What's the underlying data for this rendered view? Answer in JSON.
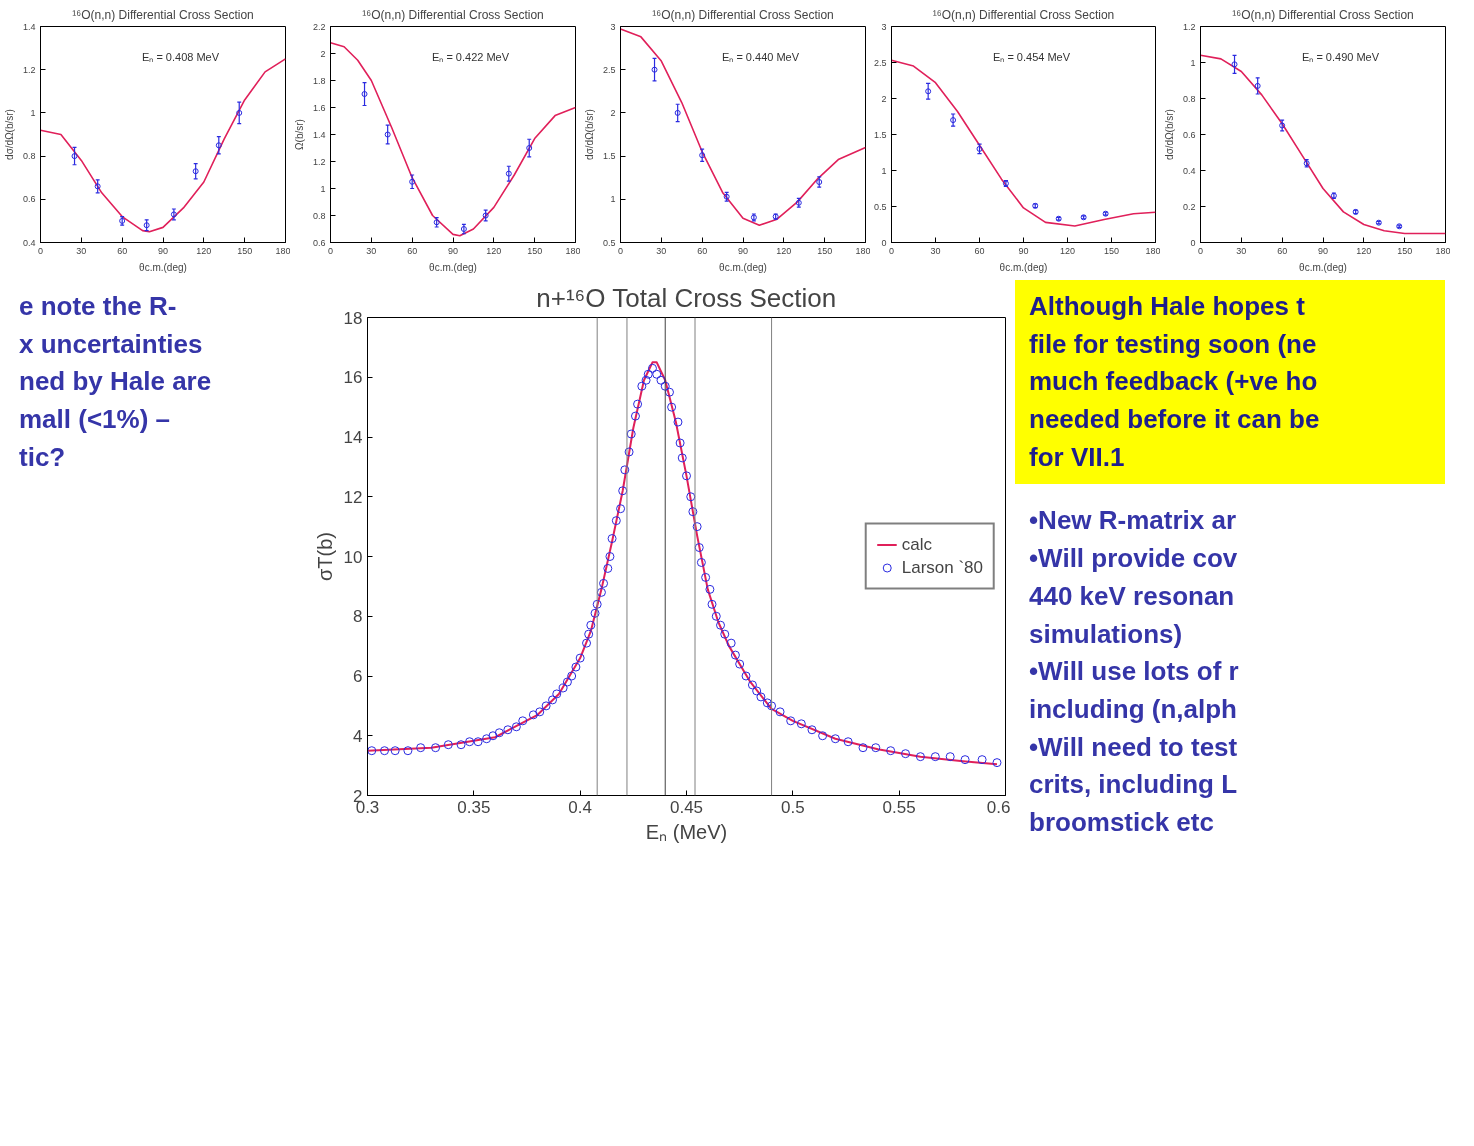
{
  "chart_data": [
    {
      "type": "line",
      "title": "¹⁶O(n,n) Differential Cross Section",
      "xlabel": "θc.m.(deg)",
      "ylabel": "dσ/dΩ(b/sr)",
      "annotations": [
        "Eₙ = 0.440 MeV"
      ],
      "xlim": [
        0,
        180
      ],
      "xticks": [
        0,
        30,
        60,
        90,
        120,
        150,
        180
      ],
      "ylim": [
        0.5,
        3
      ],
      "yticks": [
        0.5,
        1,
        1.5,
        2,
        2.5,
        3
      ],
      "series": [
        {
          "type": "line",
          "color": "#e0205a",
          "x": [
            0,
            15,
            30,
            45,
            60,
            75,
            90,
            102,
            115,
            130,
            145,
            160,
            180
          ],
          "values": [
            2.97,
            2.88,
            2.6,
            2.12,
            1.55,
            1.08,
            0.78,
            0.7,
            0.77,
            0.97,
            1.24,
            1.46,
            1.6
          ]
        },
        {
          "type": "scatter",
          "color": "#2a2ae0",
          "marker": "circle",
          "x": [
            25,
            42,
            60,
            78,
            98,
            114,
            131,
            146
          ],
          "values": [
            2.5,
            2.0,
            1.51,
            1.03,
            0.79,
            0.8,
            0.96,
            1.2
          ],
          "errors": [
            0.13,
            0.1,
            0.07,
            0.05,
            0.04,
            0.03,
            0.05,
            0.06
          ]
        }
      ]
    },
    {
      "type": "other",
      "annotations": [
        "Although Hale hopes t",
        "file for testing soon (ne",
        "much feedback (+ve ho",
        "needed before it can be",
        "for VII.1"
      ]
    },
    {
      "type": "line",
      "title": "¹⁶O(n,n) Differential Cross Section",
      "xlabel": "θc.m.(deg)",
      "ylabel": "Ω(b/sr)",
      "annotations": [
        "Eₙ = 0.422 MeV"
      ],
      "xlim": [
        0,
        180
      ],
      "xticks": [
        0,
        30,
        60,
        90,
        120,
        150,
        180
      ],
      "ylim": [
        0.6,
        2.2
      ],
      "yticks": [
        0.6,
        0.8,
        1,
        1.2,
        1.4,
        1.6,
        1.8,
        2,
        2.2
      ],
      "series": [
        {
          "type": "line",
          "color": "#e0205a",
          "x": [
            0,
            10,
            20,
            30,
            45,
            60,
            75,
            90,
            95,
            105,
            120,
            135,
            150,
            165,
            180
          ],
          "values": [
            2.08,
            2.05,
            1.95,
            1.8,
            1.45,
            1.08,
            0.8,
            0.66,
            0.65,
            0.7,
            0.86,
            1.1,
            1.37,
            1.54,
            1.6
          ]
        },
        {
          "type": "scatter",
          "color": "#2a2ae0",
          "marker": "circle",
          "x": [
            25,
            42,
            60,
            78,
            98,
            114,
            131,
            146
          ],
          "values": [
            1.7,
            1.4,
            1.05,
            0.75,
            0.7,
            0.8,
            1.11,
            1.3
          ],
          "errors": [
            0.085,
            0.07,
            0.05,
            0.035,
            0.035,
            0.04,
            0.055,
            0.065
          ]
        }
      ]
    },
    {
      "type": "line",
      "title": "¹⁶O(n,n) Differential Cross Section",
      "xlabel": "θc.m.(deg)",
      "annotations": [
        "Eₙ = 0.454 MeV"
      ],
      "xlim": [
        0,
        180
      ],
      "xticks": [
        0,
        30,
        60,
        90,
        120,
        150,
        180
      ],
      "ylim": [
        0,
        3
      ],
      "yticks": [
        0,
        0.5,
        1,
        1.5,
        2,
        2.5,
        3
      ],
      "series": [
        {
          "type": "line",
          "color": "#e0205a",
          "x": [
            0,
            15,
            30,
            45,
            60,
            75,
            90,
            105,
            125,
            145,
            165,
            180
          ],
          "values": [
            2.53,
            2.45,
            2.22,
            1.82,
            1.35,
            0.88,
            0.48,
            0.28,
            0.23,
            0.32,
            0.4,
            0.42
          ]
        },
        {
          "type": "scatter",
          "color": "#2a2ae0",
          "marker": "circle",
          "x": [
            25,
            42,
            60,
            78,
            98,
            114,
            131,
            146
          ],
          "values": [
            2.1,
            1.7,
            1.3,
            0.82,
            0.51,
            0.33,
            0.35,
            0.4
          ],
          "errors": [
            0.11,
            0.085,
            0.065,
            0.04,
            0.025,
            0.02,
            0.02,
            0.02
          ]
        }
      ]
    },
    {
      "type": "line",
      "title": "¹⁶O(n,n) Differential Cross Section",
      "xlabel": "θc.m.(deg)",
      "ylabel": "dσ/dΩ(b/sr)",
      "annotations": [
        "Eₙ = 0.408 MeV"
      ],
      "xlim": [
        0,
        180
      ],
      "xticks": [
        0,
        30,
        60,
        90,
        120,
        150,
        180
      ],
      "ylim": [
        0.4,
        1.4
      ],
      "yticks": [
        0.4,
        0.6,
        0.8,
        1,
        1.2,
        1.4
      ],
      "series": [
        {
          "type": "line",
          "color": "#e0205a",
          "x": [
            0,
            15,
            30,
            45,
            60,
            75,
            80,
            90,
            105,
            120,
            135,
            150,
            165,
            180
          ],
          "values": [
            0.92,
            0.9,
            0.78,
            0.63,
            0.52,
            0.455,
            0.45,
            0.47,
            0.56,
            0.68,
            0.88,
            1.06,
            1.19,
            1.25
          ]
        },
        {
          "type": "scatter",
          "color": "#2a2ae0",
          "marker": "circle",
          "x": [
            25,
            42,
            60,
            78,
            98,
            114,
            131,
            146
          ],
          "values": [
            0.8,
            0.66,
            0.5,
            0.48,
            0.53,
            0.73,
            0.85,
            1.0
          ],
          "errors": [
            0.04,
            0.03,
            0.02,
            0.025,
            0.025,
            0.035,
            0.04,
            0.05
          ]
        }
      ]
    },
    {
      "type": "line",
      "title": "¹⁶O(n,n) Differential Cross Section",
      "xlabel": "θc.m.(deg)",
      "ylabel": "dσ/dΩ(b/sr)",
      "annotations": [
        "Eₙ = 0.490 MeV"
      ],
      "xlim": [
        0,
        180
      ],
      "xticks": [
        0,
        30,
        60,
        90,
        120,
        150,
        180
      ],
      "ylim": [
        0,
        1.2
      ],
      "yticks": [
        0,
        0.2,
        0.4,
        0.6,
        0.8,
        1,
        1.2
      ],
      "series": [
        {
          "type": "line",
          "color": "#e0205a",
          "x": [
            0,
            15,
            30,
            45,
            60,
            75,
            90,
            105,
            120,
            135,
            150,
            165,
            180
          ],
          "values": [
            1.04,
            1.02,
            0.95,
            0.82,
            0.66,
            0.48,
            0.3,
            0.17,
            0.1,
            0.065,
            0.05,
            0.05,
            0.05
          ]
        },
        {
          "type": "scatter",
          "color": "#2a2ae0",
          "marker": "circle",
          "x": [
            25,
            42,
            60,
            78,
            98,
            114,
            131,
            146
          ],
          "values": [
            0.99,
            0.87,
            0.65,
            0.44,
            0.26,
            0.17,
            0.11,
            0.09
          ],
          "errors": [
            0.05,
            0.045,
            0.03,
            0.02,
            0.015,
            0.01,
            0.007,
            0.006
          ]
        }
      ]
    },
    {
      "type": "other",
      "annotations": [
        "e note the R-",
        "x uncertainties",
        "ned by Hale are",
        "mall (<1%) –",
        "tic?"
      ]
    },
    {
      "type": "other",
      "annotations": [
        "•New R-matrix ar",
        "•Will provide cov",
        "440 keV resonan",
        "simulations)",
        "•Will use lots of r",
        "including (n,alph",
        "•Will need to test",
        "crits, including L",
        "broomstick etc"
      ]
    },
    {
      "type": "scatter",
      "title": "n+¹⁶O Total Cross Section",
      "xlabel": "Eₙ (MeV)",
      "ylabel": "σT(b)",
      "xlim": [
        0.3,
        0.6
      ],
      "xticks": [
        0.3,
        0.35,
        0.4,
        0.45,
        0.5,
        0.55,
        0.6
      ],
      "ylim": [
        2,
        18
      ],
      "yticks": [
        2,
        4,
        6,
        8,
        10,
        12,
        14,
        16,
        18
      ],
      "legend": "right",
      "ref_lines": [
        {
          "axis": "x",
          "value": 0.408,
          "color": "#808080"
        },
        {
          "axis": "x",
          "value": 0.422,
          "color": "#808080"
        },
        {
          "axis": "x",
          "value": 0.44,
          "color": "#404040"
        },
        {
          "axis": "x",
          "value": 0.454,
          "color": "#808080"
        },
        {
          "axis": "x",
          "value": 0.49,
          "color": "#808080"
        }
      ],
      "series": [
        {
          "type": "line",
          "name": "calc",
          "color": "#e0205a",
          "x": [
            0.3,
            0.33,
            0.36,
            0.38,
            0.39,
            0.4,
            0.405,
            0.41,
            0.415,
            0.42,
            0.425,
            0.43,
            0.434,
            0.436,
            0.44,
            0.445,
            0.45,
            0.455,
            0.46,
            0.465,
            0.47,
            0.48,
            0.49,
            0.5,
            0.52,
            0.54,
            0.56,
            0.58,
            0.596
          ],
          "values": [
            3.5,
            3.6,
            3.95,
            4.7,
            5.4,
            6.6,
            7.5,
            8.9,
            10.5,
            12.2,
            14.3,
            15.9,
            16.5,
            16.5,
            15.9,
            14.5,
            12.7,
            10.7,
            8.9,
            7.8,
            7.0,
            5.8,
            4.9,
            4.5,
            3.9,
            3.55,
            3.3,
            3.15,
            3.05
          ]
        },
        {
          "type": "scatter",
          "name": "Larson `80",
          "color": "#2a2ae0",
          "marker": "circle",
          "x": [
            0.302,
            0.308,
            0.313,
            0.319,
            0.325,
            0.332,
            0.338,
            0.344,
            0.348,
            0.352,
            0.356,
            0.359,
            0.362,
            0.366,
            0.37,
            0.373,
            0.378,
            0.381,
            0.384,
            0.387,
            0.389,
            0.392,
            0.394,
            0.396,
            0.398,
            0.4,
            0.403,
            0.404,
            0.405,
            0.407,
            0.408,
            0.41,
            0.411,
            0.413,
            0.414,
            0.415,
            0.417,
            0.419,
            0.42,
            0.421,
            0.423,
            0.424,
            0.426,
            0.427,
            0.429,
            0.431,
            0.432,
            0.434,
            0.436,
            0.438,
            0.44,
            0.442,
            0.443,
            0.446,
            0.447,
            0.448,
            0.45,
            0.452,
            0.453,
            0.455,
            0.456,
            0.457,
            0.459,
            0.461,
            0.462,
            0.464,
            0.466,
            0.468,
            0.471,
            0.473,
            0.475,
            0.478,
            0.481,
            0.483,
            0.485,
            0.488,
            0.49,
            0.494,
            0.499,
            0.504,
            0.509,
            0.514,
            0.52,
            0.526,
            0.533,
            0.539,
            0.546,
            0.553,
            0.56,
            0.567,
            0.574,
            0.581,
            0.589,
            0.596
          ],
          "values": [
            3.5,
            3.5,
            3.5,
            3.5,
            3.6,
            3.6,
            3.7,
            3.7,
            3.8,
            3.8,
            3.9,
            4.0,
            4.1,
            4.2,
            4.3,
            4.5,
            4.7,
            4.8,
            5.0,
            5.2,
            5.4,
            5.6,
            5.8,
            6.0,
            6.3,
            6.6,
            7.1,
            7.4,
            7.7,
            8.1,
            8.4,
            8.8,
            9.1,
            9.6,
            10.0,
            10.6,
            11.2,
            11.6,
            12.2,
            12.9,
            13.5,
            14.1,
            14.7,
            15.1,
            15.7,
            15.9,
            16.1,
            16.3,
            16.1,
            15.9,
            15.7,
            15.5,
            15.0,
            14.5,
            13.8,
            13.3,
            12.7,
            12.0,
            11.5,
            11.0,
            10.3,
            9.8,
            9.3,
            8.9,
            8.4,
            8.0,
            7.7,
            7.4,
            7.1,
            6.7,
            6.4,
            6.0,
            5.7,
            5.5,
            5.3,
            5.1,
            5.0,
            4.8,
            4.5,
            4.4,
            4.2,
            4.0,
            3.9,
            3.8,
            3.6,
            3.6,
            3.5,
            3.4,
            3.3,
            3.3,
            3.3,
            3.2,
            3.2,
            3.1
          ]
        }
      ]
    }
  ]
}
